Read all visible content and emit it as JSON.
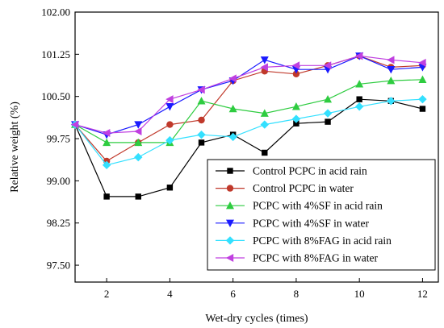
{
  "chart_data": {
    "type": "line",
    "xlabel": "Wet-dry cycles (times)",
    "ylabel": "Relative weight (%)",
    "xlim": [
      1,
      12.5
    ],
    "ylim": [
      97.2,
      102.0
    ],
    "x_ticks": [
      2,
      4,
      6,
      8,
      10,
      12
    ],
    "y_ticks": [
      97.5,
      98.25,
      99.0,
      99.75,
      100.5,
      101.25,
      102.0
    ],
    "y_tick_labels": [
      "97.50",
      "98.25",
      "99.00",
      "99.75",
      "100.50",
      "101.25",
      "102.00"
    ],
    "x": [
      1,
      2,
      3,
      4,
      5,
      6,
      7,
      8,
      9,
      10,
      11,
      12
    ],
    "legend_position": "bottom-right",
    "grid": false,
    "series": [
      {
        "name": "Control PCPC in acid rain",
        "color": "#000000",
        "marker": "square",
        "values": [
          100.0,
          98.72,
          98.72,
          98.88,
          99.68,
          99.82,
          99.5,
          100.02,
          100.05,
          100.45,
          100.42,
          100.28
        ]
      },
      {
        "name": "Control PCPC in water",
        "color": "#c0392b",
        "marker": "circle",
        "values": [
          100.0,
          99.35,
          99.68,
          100.0,
          100.08,
          100.78,
          100.95,
          100.9,
          101.05,
          101.22,
          101.02,
          101.05
        ]
      },
      {
        "name": "PCPC with 4%SF in acid rain",
        "color": "#2ecc40",
        "marker": "triangle-up",
        "values": [
          100.0,
          99.68,
          99.68,
          99.68,
          100.42,
          100.28,
          100.2,
          100.32,
          100.45,
          100.72,
          100.78,
          100.8
        ]
      },
      {
        "name": "PCPC with 4%SF in water",
        "color": "#1a1aff",
        "marker": "triangle-down",
        "values": [
          100.0,
          99.82,
          100.0,
          100.32,
          100.62,
          100.78,
          101.15,
          100.98,
          100.98,
          101.22,
          100.98,
          101.02
        ]
      },
      {
        "name": "PCPC with 8%FAG in acid rain",
        "color": "#33e0ff",
        "marker": "diamond",
        "values": [
          100.0,
          99.28,
          99.42,
          99.72,
          99.82,
          99.78,
          100.0,
          100.1,
          100.2,
          100.32,
          100.42,
          100.45
        ]
      },
      {
        "name": "PCPC with 8%FAG in water",
        "color": "#c040e0",
        "marker": "triangle-left",
        "values": [
          100.0,
          99.85,
          99.88,
          100.45,
          100.62,
          100.82,
          101.02,
          101.05,
          101.05,
          101.22,
          101.15,
          101.1
        ]
      }
    ]
  }
}
